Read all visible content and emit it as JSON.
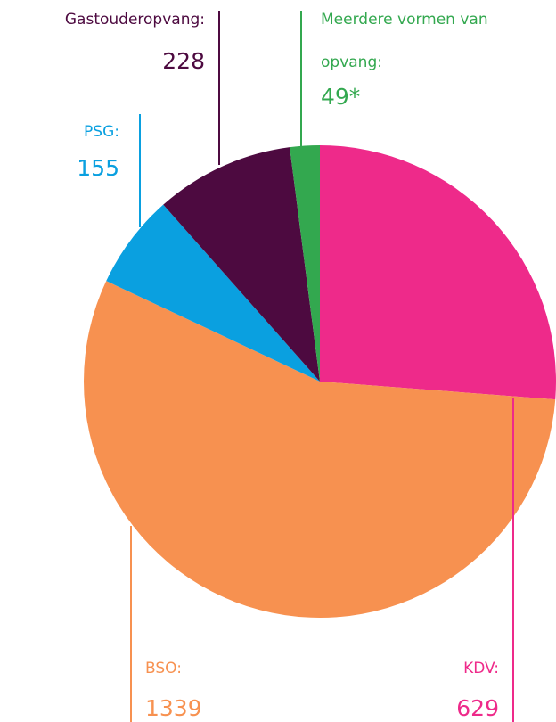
{
  "chart_data": {
    "type": "pie",
    "categories": [
      "KDV:",
      "BSO:",
      "PSG:",
      "Gastouderopvang:",
      "Meerdere vormen van opvang:"
    ],
    "values": [
      629,
      1339,
      155,
      228,
      49
    ],
    "value_labels": [
      "629",
      "1339",
      "155",
      "228",
      "49*"
    ],
    "colors": [
      "#ee2a8a",
      "#f79150",
      "#0aa0e0",
      "#4d0a40",
      "#33a84f"
    ]
  }
}
